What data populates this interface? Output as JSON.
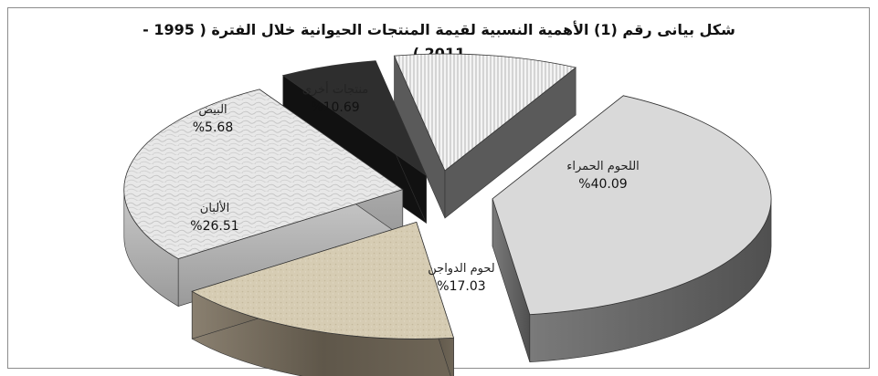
{
  "chart_data": {
    "type": "pie",
    "title_line1": "شكل بيانى رقم (1) الأهمية النسبية لقيمة المنتجات الحيوانية خلال الفترة ( 1995 -",
    "title_line2": "2011 )",
    "three_d": true,
    "exploded": true,
    "slices": [
      {
        "label": "اللحوم الحمراء",
        "value": 40.09,
        "value_text": "%40.09",
        "color": "#d9d9d9"
      },
      {
        "label": "لحوم الدواجن",
        "value": 17.03,
        "value_text": "%17.03",
        "color": "#cfc3a8"
      },
      {
        "label": "الألبان",
        "value": 26.51,
        "value_text": "%26.51",
        "color": "#e6e6e6"
      },
      {
        "label": "البيض",
        "value": 5.68,
        "value_text": "%5.68",
        "color": "#3a3a3a"
      },
      {
        "label": "منتجات أخرى",
        "value": 10.69,
        "value_text": "%10.69",
        "color": "#f2f2f2"
      }
    ]
  }
}
